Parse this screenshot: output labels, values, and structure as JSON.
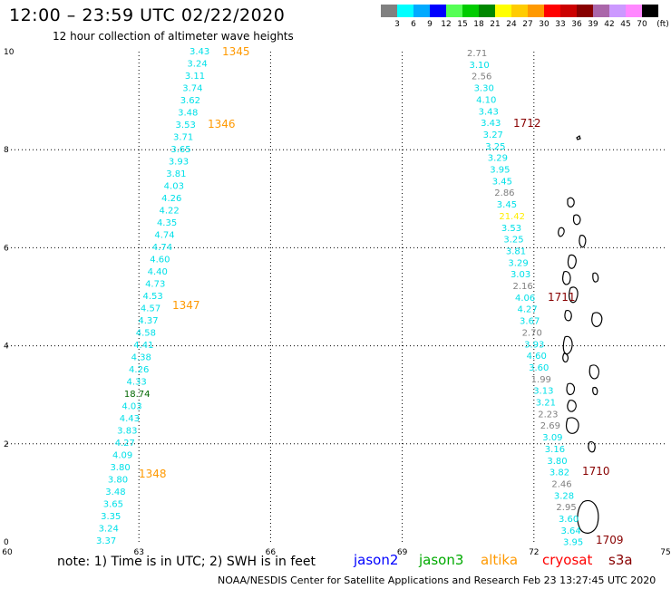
{
  "header": {
    "title": "12:00 – 23:59 UTC 02/22/2020",
    "subtitle": "12 hour collection of altimeter wave heights"
  },
  "legend": {
    "unit_label": "(ft)",
    "items": [
      {
        "color": "#808080",
        "label": "3"
      },
      {
        "color": "#00ffff",
        "label": "6"
      },
      {
        "color": "#00aaff",
        "label": "9"
      },
      {
        "color": "#0000ff",
        "label": "12"
      },
      {
        "color": "#55ff55",
        "label": "15"
      },
      {
        "color": "#00cc00",
        "label": "18"
      },
      {
        "color": "#008800",
        "label": "21"
      },
      {
        "color": "#ffff00",
        "label": "24"
      },
      {
        "color": "#ffcc00",
        "label": "27"
      },
      {
        "color": "#ff9900",
        "label": "30"
      },
      {
        "color": "#ff0000",
        "label": "33"
      },
      {
        "color": "#cc0000",
        "label": "36"
      },
      {
        "color": "#880000",
        "label": "39"
      },
      {
        "color": "#aa66aa",
        "label": "42"
      },
      {
        "color": "#cc99ff",
        "label": "45"
      },
      {
        "color": "#ff88ff",
        "label": "70"
      },
      {
        "color": "#000000",
        "label": ""
      }
    ]
  },
  "map": {
    "lon_range": [
      60,
      75
    ],
    "lat_range": [
      0,
      10
    ],
    "x_ticks": [
      "60",
      "63",
      "66",
      "69",
      "72",
      "75"
    ],
    "y_ticks": [
      "0",
      "2",
      "4",
      "6",
      "8",
      "10"
    ],
    "colors": {
      "cyan": "#00e0e8",
      "gray": "#808080",
      "green": "#006600",
      "yellow": "#ffee00",
      "orange": "#ff9900",
      "darkred": "#880000"
    },
    "west_track": [
      {
        "t": "3.43",
        "c": "cyan"
      },
      {
        "t": "3.24",
        "c": "cyan"
      },
      {
        "t": "3.11",
        "c": "cyan"
      },
      {
        "t": "3.74",
        "c": "cyan"
      },
      {
        "t": "3.62",
        "c": "cyan"
      },
      {
        "t": "3.48",
        "c": "cyan"
      },
      {
        "t": "3.53",
        "c": "cyan"
      },
      {
        "t": "3.71",
        "c": "cyan"
      },
      {
        "t": "3.65",
        "c": "cyan"
      },
      {
        "t": "3.93",
        "c": "cyan"
      },
      {
        "t": "3.81",
        "c": "cyan"
      },
      {
        "t": "4.03",
        "c": "cyan"
      },
      {
        "t": "4.26",
        "c": "cyan"
      },
      {
        "t": "4.22",
        "c": "cyan"
      },
      {
        "t": "4.35",
        "c": "cyan"
      },
      {
        "t": "4.74",
        "c": "cyan"
      },
      {
        "t": "4.74",
        "c": "cyan"
      },
      {
        "t": "4.60",
        "c": "cyan"
      },
      {
        "t": "4.40",
        "c": "cyan"
      },
      {
        "t": "4.73",
        "c": "cyan"
      },
      {
        "t": "4.53",
        "c": "cyan"
      },
      {
        "t": "4.57",
        "c": "cyan"
      },
      {
        "t": "4.37",
        "c": "cyan"
      },
      {
        "t": "4.58",
        "c": "cyan"
      },
      {
        "t": "4.41",
        "c": "cyan"
      },
      {
        "t": "4.38",
        "c": "cyan"
      },
      {
        "t": "4.26",
        "c": "cyan"
      },
      {
        "t": "4.33",
        "c": "cyan"
      },
      {
        "t": "18.74",
        "c": "green"
      },
      {
        "t": "4.03",
        "c": "cyan"
      },
      {
        "t": "4.43",
        "c": "cyan"
      },
      {
        "t": "3.83",
        "c": "cyan"
      },
      {
        "t": "4.27",
        "c": "cyan"
      },
      {
        "t": "4.09",
        "c": "cyan"
      },
      {
        "t": "3.80",
        "c": "cyan"
      },
      {
        "t": "3.80",
        "c": "cyan"
      },
      {
        "t": "3.48",
        "c": "cyan"
      },
      {
        "t": "3.65",
        "c": "cyan"
      },
      {
        "t": "3.35",
        "c": "cyan"
      },
      {
        "t": "3.24",
        "c": "cyan"
      },
      {
        "t": "3.37",
        "c": "cyan"
      }
    ],
    "east_track": [
      {
        "t": "2.71",
        "c": "gray"
      },
      {
        "t": "3.10",
        "c": "cyan"
      },
      {
        "t": "2.56",
        "c": "gray"
      },
      {
        "t": "3.30",
        "c": "cyan"
      },
      {
        "t": "4.10",
        "c": "cyan"
      },
      {
        "t": "3.43",
        "c": "cyan"
      },
      {
        "t": "3.43",
        "c": "cyan"
      },
      {
        "t": "3.27",
        "c": "cyan"
      },
      {
        "t": "3.25",
        "c": "cyan"
      },
      {
        "t": "3.29",
        "c": "cyan"
      },
      {
        "t": "3.95",
        "c": "cyan"
      },
      {
        "t": "3.45",
        "c": "cyan"
      },
      {
        "t": "2.86",
        "c": "gray"
      },
      {
        "t": "3.45",
        "c": "cyan"
      },
      {
        "t": "21.42",
        "c": "yellow"
      },
      {
        "t": "3.53",
        "c": "cyan"
      },
      {
        "t": "3.25",
        "c": "cyan"
      },
      {
        "t": "3.81",
        "c": "cyan"
      },
      {
        "t": "3.29",
        "c": "cyan"
      },
      {
        "t": "3.03",
        "c": "cyan"
      },
      {
        "t": "2.16",
        "c": "gray"
      },
      {
        "t": "4.06",
        "c": "cyan"
      },
      {
        "t": "4.27",
        "c": "cyan"
      },
      {
        "t": "3.67",
        "c": "cyan"
      },
      {
        "t": "2.70",
        "c": "gray"
      },
      {
        "t": "3.93",
        "c": "cyan"
      },
      {
        "t": "4.60",
        "c": "cyan"
      },
      {
        "t": "3.60",
        "c": "cyan"
      },
      {
        "t": "1.99",
        "c": "gray"
      },
      {
        "t": "3.13",
        "c": "cyan"
      },
      {
        "t": "3.21",
        "c": "cyan"
      },
      {
        "t": "2.23",
        "c": "gray"
      },
      {
        "t": "2.69",
        "c": "gray"
      },
      {
        "t": "3.09",
        "c": "cyan"
      },
      {
        "t": "3.16",
        "c": "cyan"
      },
      {
        "t": "3.80",
        "c": "cyan"
      },
      {
        "t": "3.82",
        "c": "cyan"
      },
      {
        "t": "2.46",
        "c": "gray"
      },
      {
        "t": "3.28",
        "c": "cyan"
      },
      {
        "t": "2.95",
        "c": "gray"
      },
      {
        "t": "3.60",
        "c": "cyan"
      },
      {
        "t": "3.64",
        "c": "cyan"
      },
      {
        "t": "3.95",
        "c": "cyan"
      }
    ],
    "pass_times": [
      {
        "t": "1345",
        "c": "orange"
      },
      {
        "t": "1346",
        "c": "orange"
      },
      {
        "t": "1347",
        "c": "orange"
      },
      {
        "t": "1348",
        "c": "orange"
      },
      {
        "t": "1712",
        "c": "darkred"
      },
      {
        "t": "1711",
        "c": "darkred"
      },
      {
        "t": "1710",
        "c": "darkred"
      },
      {
        "t": "1709",
        "c": "darkred"
      }
    ]
  },
  "footer": {
    "note": "note: 1) Time is in UTC; 2) SWH is in feet",
    "satellites": [
      {
        "name": "jason2",
        "color": "#0000ff"
      },
      {
        "name": "jason3",
        "color": "#00aa00"
      },
      {
        "name": "altika",
        "color": "#ff9900"
      },
      {
        "name": "cryosat",
        "color": "#ff0000"
      },
      {
        "name": "s3a",
        "color": "#880000"
      }
    ],
    "credit": "NOAA/NESDIS Center for Satellite Applications and Research    Feb 23 13:27:45 UTC 2020"
  }
}
